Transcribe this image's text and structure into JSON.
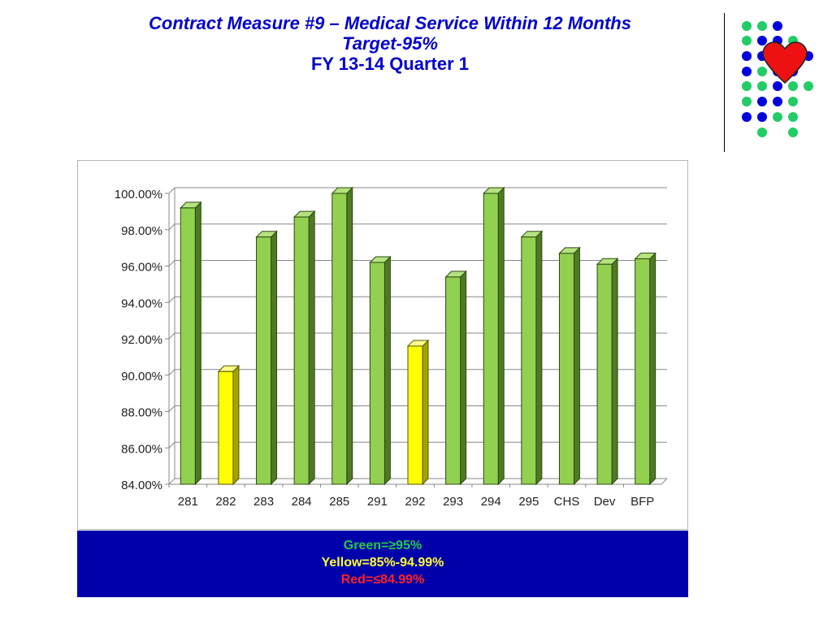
{
  "slide": {
    "title_line1": "Contract Measure #9 – Medical Service Within 12 Months",
    "title_line2": "Target-95%",
    "title_line3": "FY 13-14 Quarter 1"
  },
  "legend": {
    "green_label": "Green=≥95%",
    "yellow_label": "Yellow=85%-94.99%",
    "red_label": "Red=≤84.99%",
    "green_color": "#22cc44",
    "yellow_color": "#ffff33",
    "red_color": "#ff2222",
    "background_color": "#0000aa"
  },
  "chart_data": {
    "type": "bar",
    "title": "",
    "xlabel": "",
    "ylabel": "",
    "categories": [
      "281",
      "282",
      "283",
      "284",
      "285",
      "291",
      "292",
      "293",
      "294",
      "295",
      "CHS",
      "Dev",
      "BFP"
    ],
    "values": [
      99.2,
      90.2,
      97.6,
      98.7,
      100.0,
      96.2,
      91.6,
      95.4,
      100.0,
      97.6,
      96.7,
      96.1,
      96.4
    ],
    "bar_colors": [
      "green",
      "yellow",
      "green",
      "green",
      "green",
      "green",
      "yellow",
      "green",
      "green",
      "green",
      "green",
      "green",
      "green"
    ],
    "ylim": [
      84,
      100
    ],
    "yticks": [
      "84.00%",
      "86.00%",
      "88.00%",
      "90.00%",
      "92.00%",
      "94.00%",
      "96.00%",
      "98.00%",
      "100.00%"
    ],
    "grid": true,
    "style": "3d-column"
  }
}
